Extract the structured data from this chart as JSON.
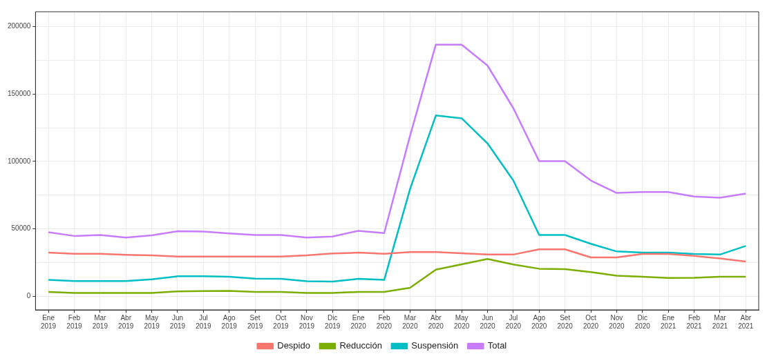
{
  "chart_data": {
    "type": "line",
    "categories": [
      "Ene 2019",
      "Feb 2019",
      "Mar 2019",
      "Abr 2019",
      "May 2019",
      "Jun 2019",
      "Jul 2019",
      "Ago 2019",
      "Set 2019",
      "Oct 2019",
      "Nov 2019",
      "Dic 2019",
      "Ene 2020",
      "Feb 2020",
      "Mar 2020",
      "Abr 2020",
      "May 2020",
      "Jun 2020",
      "Jul 2020",
      "Ago 2020",
      "Set 2020",
      "Oct 2020",
      "Nov 2020",
      "Dic 2020",
      "Ene 2021",
      "Feb 2021",
      "Mar 2021",
      "Abr 2021"
    ],
    "series": [
      {
        "name": "Despido",
        "color": "#f8766d",
        "values": [
          32400,
          31600,
          31600,
          30800,
          30400,
          29500,
          29500,
          29500,
          29500,
          29500,
          30400,
          31800,
          32400,
          31600,
          32900,
          32900,
          32000,
          31000,
          31000,
          34900,
          34900,
          28900,
          28900,
          31400,
          31400,
          30000,
          28100,
          25800
        ]
      },
      {
        "name": "Reducción",
        "color": "#7cae00",
        "values": [
          3300,
          2500,
          2500,
          2500,
          2500,
          3700,
          3900,
          4100,
          3300,
          3300,
          2500,
          2500,
          3300,
          3300,
          6400,
          19800,
          23800,
          27700,
          23600,
          20500,
          20200,
          18000,
          15300,
          14500,
          13600,
          13800,
          14500,
          14500
        ]
      },
      {
        "name": "Suspensión",
        "color": "#00bfc4",
        "values": [
          12200,
          11400,
          11400,
          11400,
          12600,
          14900,
          14900,
          14500,
          13200,
          13000,
          11200,
          11000,
          13000,
          12200,
          79500,
          134100,
          132000,
          113400,
          85900,
          45500,
          45500,
          39000,
          33300,
          32400,
          32400,
          31400,
          31000,
          37400
        ]
      },
      {
        "name": "Total",
        "color": "#c77cff",
        "values": [
          47500,
          44800,
          45500,
          43600,
          45200,
          48300,
          48100,
          46700,
          45500,
          45500,
          43600,
          44400,
          48600,
          46900,
          119000,
          186600,
          186600,
          171100,
          139500,
          100200,
          100200,
          85900,
          76700,
          77300,
          77300,
          74000,
          73100,
          76200
        ]
      }
    ],
    "ylim": [
      -10000,
      211000
    ],
    "yticks": [
      0,
      {
        "value": 25000,
        "label": null
      },
      50000,
      {
        "value": 75000,
        "label": null
      },
      100000,
      {
        "value": 125000,
        "label": null
      },
      150000,
      {
        "value": 175000,
        "label": null
      },
      200000
    ],
    "grid": true,
    "legend": "bottom",
    "marker": "none",
    "line_style": "solid"
  }
}
